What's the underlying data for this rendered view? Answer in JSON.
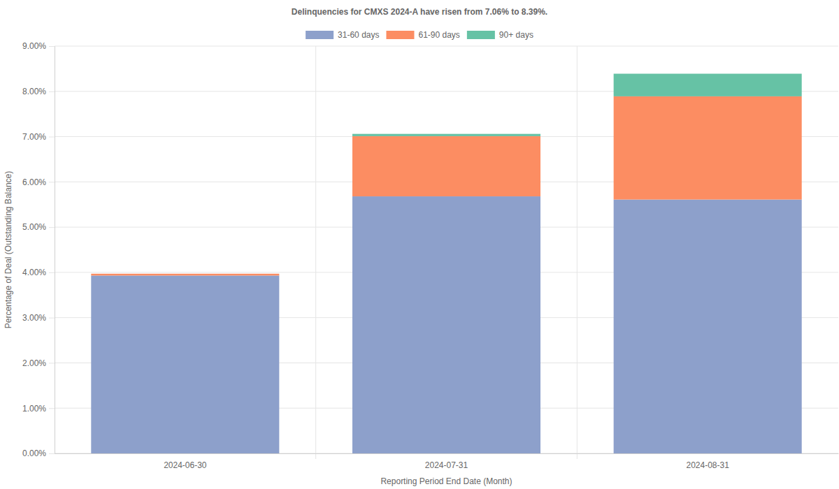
{
  "chart_data": {
    "type": "bar",
    "stacked": true,
    "grid": true,
    "legend": "top",
    "title": "Delinquencies for CMXS 2024-A have risen from 7.06% to 8.39%.",
    "x_label": "Reporting Period End Date (Month)",
    "y_label": "Percentage of Deal (Outstanding Balance)",
    "categories": [
      "2024-06-30",
      "2024-07-31",
      "2024-08-31"
    ],
    "series": [
      {
        "name": "31-60 days",
        "color": "#8da0cb",
        "values": [
          3.93,
          5.68,
          5.61
        ]
      },
      {
        "name": "61-90 days",
        "color": "#fc8d62",
        "values": [
          0.04,
          1.33,
          2.28
        ]
      },
      {
        "name": "90+ days",
        "color": "#66c2a5",
        "values": [
          0,
          0.05,
          0.5
        ]
      }
    ],
    "ylim": [
      0,
      9
    ],
    "yticks": [
      {
        "value": 0,
        "label": "0.00%"
      },
      {
        "value": 1,
        "label": "1.00%"
      },
      {
        "value": 2,
        "label": "2.00%"
      },
      {
        "value": 3,
        "label": "3.00%"
      },
      {
        "value": 4,
        "label": "4.00%"
      },
      {
        "value": 5,
        "label": "5.00%"
      },
      {
        "value": 6,
        "label": "6.00%"
      },
      {
        "value": 7,
        "label": "7.00%"
      },
      {
        "value": 8,
        "label": "8.00%"
      },
      {
        "value": 9,
        "label": "9.00%"
      }
    ]
  }
}
